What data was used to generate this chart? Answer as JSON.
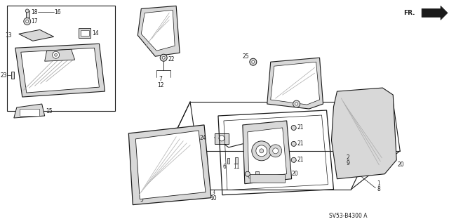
{
  "bg_color": "#ffffff",
  "line_color": "#1a1a1a",
  "gray_fill": "#b8b8b8",
  "light_gray": "#d8d8d8",
  "diagram_code": "SV53-B4300 A",
  "figsize": [
    6.4,
    3.19
  ],
  "dpi": 100
}
